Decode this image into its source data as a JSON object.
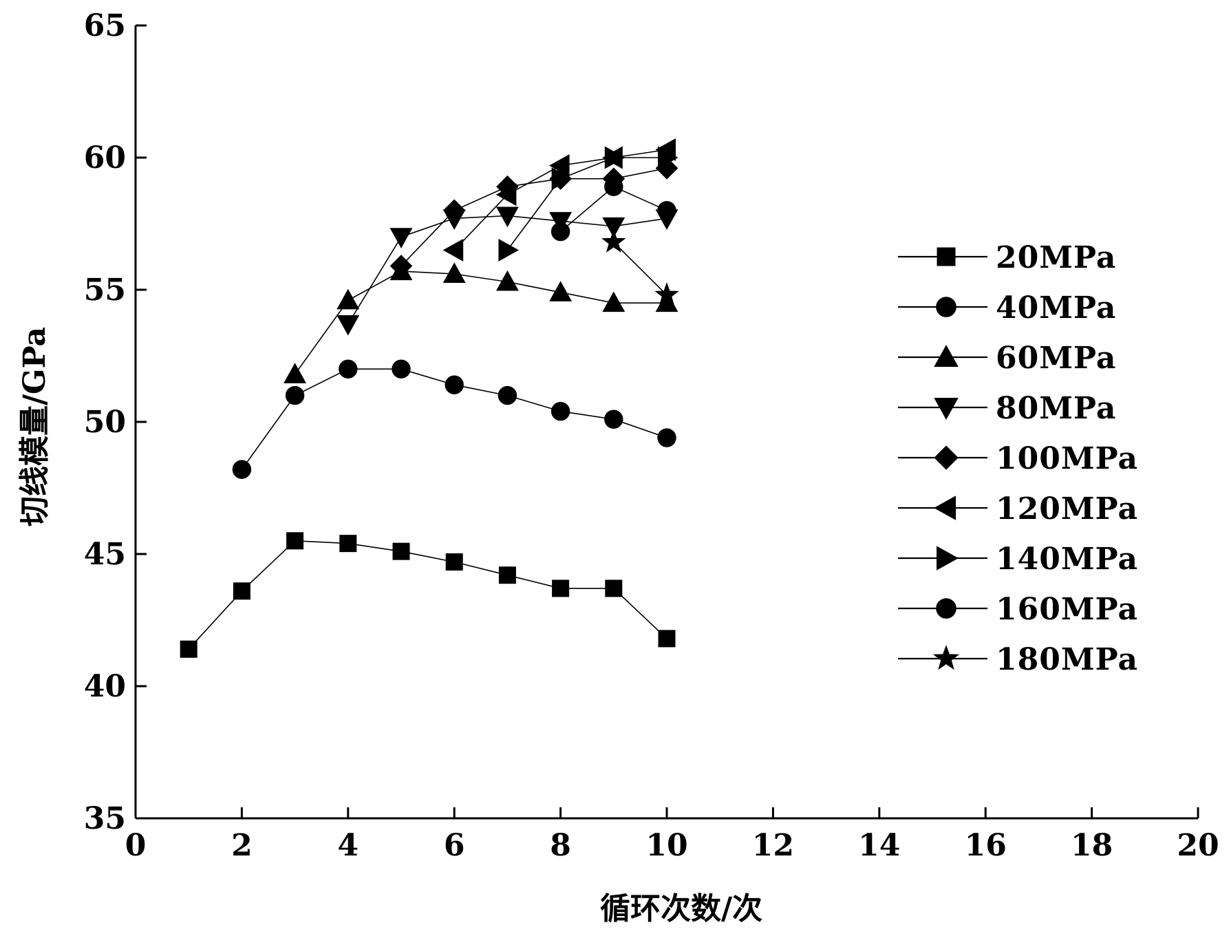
{
  "chart_data": {
    "type": "line",
    "title": "",
    "xlabel": "循环次数/次",
    "ylabel": "切线模量/GPa",
    "xlim": [
      0,
      20
    ],
    "ylim": [
      35,
      65
    ],
    "xticks": [
      0,
      2,
      4,
      6,
      8,
      10,
      12,
      14,
      16,
      18,
      20
    ],
    "yticks": [
      35,
      40,
      45,
      50,
      55,
      60,
      65
    ],
    "grid": false,
    "legend_position": "right",
    "series": [
      {
        "name": "20MPa",
        "marker": "square",
        "x": [
          1,
          2,
          3,
          4,
          5,
          6,
          7,
          8,
          9,
          10
        ],
        "y": [
          41.4,
          43.6,
          45.5,
          45.4,
          45.1,
          44.7,
          44.2,
          43.7,
          43.7,
          41.8
        ]
      },
      {
        "name": "40MPa",
        "marker": "circle",
        "x": [
          2,
          3,
          4,
          5,
          6,
          7,
          8,
          9,
          10
        ],
        "y": [
          48.2,
          51.0,
          52.0,
          52.0,
          51.4,
          51.0,
          50.4,
          50.1,
          49.4
        ]
      },
      {
        "name": "60MPa",
        "marker": "triangle-up",
        "x": [
          3,
          4,
          5,
          6,
          7,
          8,
          9,
          10
        ],
        "y": [
          51.8,
          54.6,
          55.7,
          55.6,
          55.3,
          54.9,
          54.5,
          54.5
        ]
      },
      {
        "name": "80MPa",
        "marker": "triangle-down",
        "x": [
          4,
          5,
          6,
          7,
          8,
          9,
          10
        ],
        "y": [
          53.7,
          57.0,
          57.7,
          57.8,
          57.6,
          57.4,
          57.7
        ]
      },
      {
        "name": "100MPa",
        "marker": "diamond",
        "x": [
          5,
          6,
          7,
          8,
          9,
          10
        ],
        "y": [
          55.9,
          58.0,
          58.9,
          59.2,
          59.2,
          59.6
        ]
      },
      {
        "name": "120MPa",
        "marker": "triangle-left",
        "x": [
          6,
          7,
          8,
          9,
          10
        ],
        "y": [
          56.5,
          58.6,
          59.7,
          60.0,
          60.3
        ]
      },
      {
        "name": "140MPa",
        "marker": "triangle-right",
        "x": [
          7,
          8,
          9,
          10
        ],
        "y": [
          56.5,
          59.2,
          60.0,
          60.0
        ]
      },
      {
        "name": "160MPa",
        "marker": "circle",
        "x": [
          8,
          9,
          10
        ],
        "y": [
          57.2,
          58.9,
          58.0
        ]
      },
      {
        "name": "180MPa",
        "marker": "star",
        "x": [
          9,
          10
        ],
        "y": [
          56.8,
          54.8
        ]
      }
    ]
  }
}
